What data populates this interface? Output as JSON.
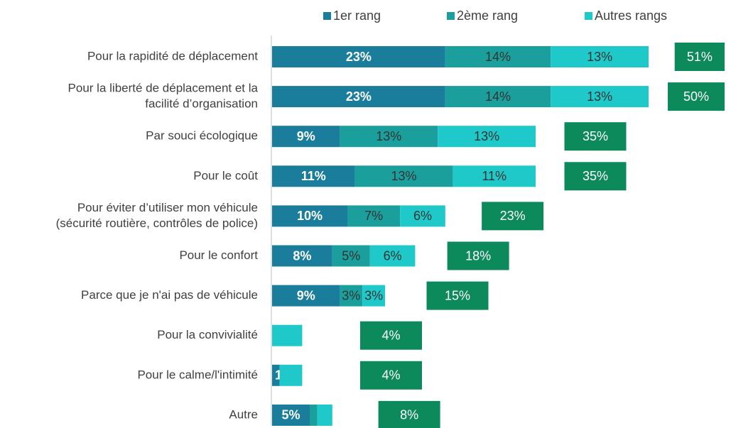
{
  "chart_data": {
    "type": "stacked-barh",
    "categories": [
      "Pour la rapidité de déplacement",
      [
        "Pour la liberté de déplacement et la",
        "facilité d’organisation"
      ],
      "Par souci écologique",
      "Pour le coût",
      [
        "Pour éviter d’utiliser mon véhicule",
        "(sécurité routière, contrôles de police)"
      ],
      "Pour le confort",
      "Parce que je n'ai pas de véhicule",
      "Pour la convivialité",
      "Pour le calme/l'intimité",
      "Autre"
    ],
    "series": [
      {
        "name": "1er rang",
        "color": "#1a7d9c",
        "values": [
          23,
          23,
          9,
          11,
          10,
          8,
          9,
          0,
          1,
          5
        ],
        "value_labels": [
          "23%",
          "23%",
          "9%",
          "11%",
          "10%",
          "8%",
          "9%",
          "0%",
          "1%",
          "5%"
        ]
      },
      {
        "name": "2ème rang",
        "color": "#1a9f9c",
        "values": [
          14,
          14,
          13,
          13,
          7,
          5,
          3,
          0,
          0,
          1
        ],
        "value_labels": [
          "14%",
          "14%",
          "13%",
          "13%",
          "7%",
          "5%",
          "3%",
          null,
          null,
          null
        ]
      },
      {
        "name": "Autres rangs",
        "color": "#1fc9c9",
        "values": [
          13,
          13,
          13,
          11,
          6,
          6,
          3,
          4,
          3,
          2
        ],
        "value_labels": [
          "13%",
          "13%",
          "13%",
          "11%",
          "6%",
          "6%",
          "3%",
          null,
          null,
          null
        ]
      }
    ],
    "totals": {
      "color": "#0c8a5c",
      "values": [
        51,
        50,
        35,
        35,
        23,
        18,
        15,
        4,
        4,
        8
      ],
      "value_labels": [
        "51%",
        "50%",
        "35%",
        "35%",
        "23%",
        "18%",
        "15%",
        "4%",
        "4%",
        "8%"
      ]
    }
  }
}
